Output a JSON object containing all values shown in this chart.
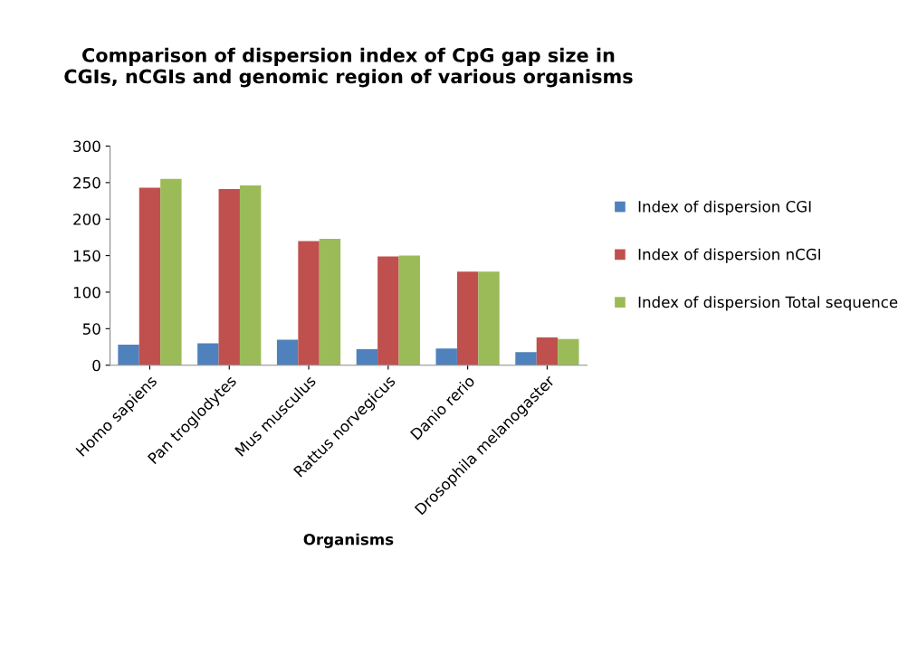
{
  "chart_data": {
    "type": "bar",
    "title": "Comparison of dispersion index of CpG gap size in\nCGIs, nCGIs and genomic region of various organisms",
    "xlabel": "Organisms",
    "categories": [
      "Homo sapiens",
      "Pan troglodytes",
      "Mus musculus",
      "Rattus norvegicus",
      "Danio rerio",
      "Drosophila melanogaster"
    ],
    "series": [
      {
        "name": "Index of dispersion CGI",
        "color": "#4f81bd",
        "values": [
          28,
          30,
          35,
          22,
          23,
          18
        ]
      },
      {
        "name": "Index of dispersion nCGI",
        "color": "#c0504d",
        "values": [
          243,
          241,
          170,
          149,
          128,
          38
        ]
      },
      {
        "name": "Index of dispersion Total sequence",
        "color": "#9bbb59",
        "values": [
          255,
          246,
          173,
          150,
          128,
          36
        ]
      }
    ],
    "ylim": [
      0,
      300
    ],
    "yticks": [
      0,
      50,
      100,
      150,
      200,
      250,
      300
    ],
    "grid": false,
    "legend": "right"
  }
}
